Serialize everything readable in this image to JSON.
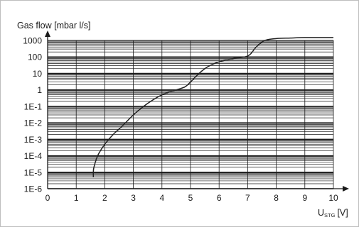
{
  "chart_data": {
    "type": "line",
    "ylabel": "Gas flow [mbar l/s]",
    "xlabel_main": "U",
    "xlabel_sub": "STG",
    "xlabel_unit": "[V]",
    "xlim": [
      0,
      10
    ],
    "ylim_decades": [
      -6,
      3
    ],
    "y_scale": "log",
    "grid": true,
    "x_ticks": [
      "0",
      "1",
      "2",
      "3",
      "4",
      "5",
      "6",
      "7",
      "8",
      "9",
      "10"
    ],
    "y_ticks": [
      "1E-6",
      "1E-5",
      "1E-4",
      "1E-3",
      "1E-2",
      "1E-1",
      "1",
      "10",
      "100",
      "1000"
    ],
    "colors": {
      "line": "#222222",
      "grid": "#1a1a1a",
      "axis": "#1a1a1a"
    },
    "series": [
      {
        "x": [
          1.6,
          1.6,
          1.62,
          1.75,
          2.0,
          2.3,
          2.6,
          3.0,
          3.5,
          4.0,
          4.5,
          4.8,
          5.0,
          5.3,
          5.6,
          6.0,
          6.5,
          6.9,
          7.1,
          7.3,
          7.6,
          8.0,
          8.5,
          9.0,
          9.5,
          10.0
        ],
        "y": [
          5e-06,
          1e-05,
          2e-05,
          0.0001,
          0.0005,
          0.002,
          0.006,
          0.03,
          0.15,
          0.5,
          1.0,
          1.5,
          3,
          10,
          25,
          50,
          80,
          100,
          150,
          400,
          1000,
          1300,
          1400,
          1500,
          1500,
          1500
        ]
      }
    ]
  }
}
